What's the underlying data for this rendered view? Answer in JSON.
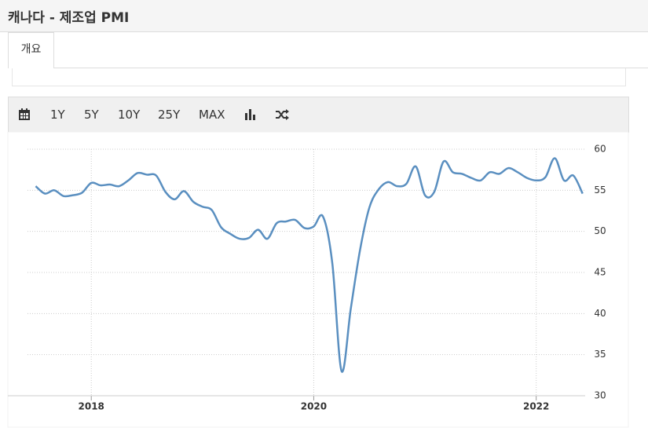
{
  "header": {
    "title": "캐나다 - 제조업 PMI"
  },
  "tabs": [
    "개요"
  ],
  "toolbar": {
    "ranges": [
      "1Y",
      "5Y",
      "10Y",
      "25Y",
      "MAX"
    ]
  },
  "chart_data": {
    "type": "line",
    "x": [
      2017.5,
      2017.583,
      2017.667,
      2017.75,
      2017.833,
      2017.917,
      2018.0,
      2018.083,
      2018.167,
      2018.25,
      2018.333,
      2018.417,
      2018.5,
      2018.583,
      2018.667,
      2018.75,
      2018.833,
      2018.917,
      2019.0,
      2019.083,
      2019.167,
      2019.25,
      2019.333,
      2019.417,
      2019.5,
      2019.583,
      2019.667,
      2019.75,
      2019.833,
      2019.917,
      2020.0,
      2020.083,
      2020.167,
      2020.25,
      2020.333,
      2020.417,
      2020.5,
      2020.583,
      2020.667,
      2020.75,
      2020.833,
      2020.917,
      2021.0,
      2021.083,
      2021.167,
      2021.25,
      2021.333,
      2021.417,
      2021.5,
      2021.583,
      2021.667,
      2021.75,
      2021.833,
      2021.917,
      2022.0,
      2022.083,
      2022.167,
      2022.25,
      2022.333,
      2022.417
    ],
    "series": [
      {
        "color": "#5a8fc0",
        "values": [
          55.5,
          54.6,
          55.0,
          54.3,
          54.4,
          54.7,
          55.9,
          55.6,
          55.7,
          55.5,
          56.2,
          57.1,
          56.9,
          56.8,
          54.8,
          53.9,
          54.9,
          53.6,
          53.0,
          52.6,
          50.5,
          49.7,
          49.1,
          49.2,
          50.2,
          49.1,
          51.0,
          51.2,
          51.4,
          50.4,
          50.6,
          51.8,
          46.1,
          33.0,
          40.6,
          47.8,
          52.9,
          55.1,
          56.0,
          55.5,
          55.8,
          57.9,
          54.4,
          54.8,
          58.5,
          57.2,
          57.0,
          56.5,
          56.2,
          57.2,
          57.0,
          57.7,
          57.2,
          56.5,
          56.2,
          56.6,
          58.9,
          56.2,
          56.8,
          54.6
        ]
      }
    ],
    "xlim": [
      2017.25,
      2022.44
    ],
    "xticks": [
      2018,
      2020,
      2022
    ],
    "ylim": [
      30,
      60
    ],
    "yticks": [
      30,
      35,
      40,
      45,
      50,
      55,
      60
    ],
    "grid": true
  }
}
